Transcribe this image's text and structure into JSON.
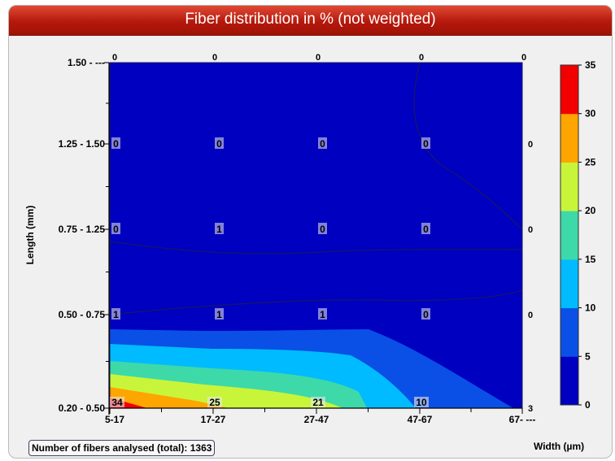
{
  "panel": {
    "title": "Fiber distribution in % (not weighted)",
    "count_label": "Number of fibers analysed (total):",
    "count_value": "1363"
  },
  "chart_data": {
    "type": "heatmap",
    "title": "Fiber distribution in % (not weighted)",
    "xlabel": "Width (µm)",
    "ylabel": "Length (mm)",
    "x_categories": [
      "5-17",
      "17-27",
      "27-47",
      "47-67",
      "67- ---"
    ],
    "y_categories": [
      "0.20 - 0.50",
      "0.50 - 0.75",
      "0.75 - 1.25",
      "1.25 - 1.50",
      "1.50 - ---"
    ],
    "values": [
      [
        34,
        25,
        21,
        10,
        3
      ],
      [
        1,
        1,
        1,
        0,
        0
      ],
      [
        0,
        1,
        0,
        0,
        0
      ],
      [
        0,
        0,
        0,
        0,
        0
      ],
      [
        0,
        0,
        0,
        0,
        0
      ]
    ],
    "colorbar": {
      "ticks": [
        0,
        5,
        10,
        15,
        20,
        25,
        30,
        35
      ],
      "colors": [
        "#0000c0",
        "#0a50e6",
        "#00bbff",
        "#3ed9a8",
        "#c8f53a",
        "#ffa500",
        "#f20000"
      ]
    },
    "background_color": "#0000c0"
  }
}
